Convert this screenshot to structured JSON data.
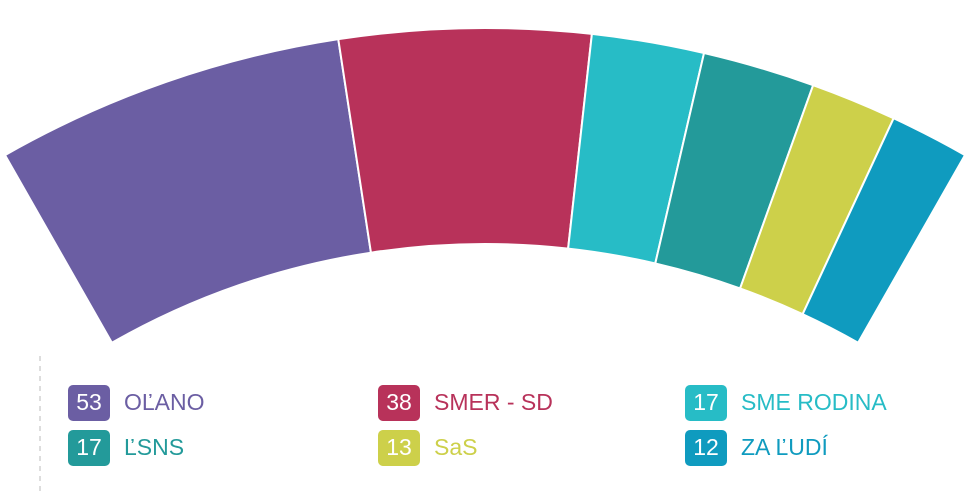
{
  "chart_data": {
    "type": "arc",
    "categories": [
      "OĽANO",
      "SMER - SD",
      "SME RODINA",
      "ĽSNS",
      "SaS",
      "ZA ĽUDÍ"
    ],
    "values": [
      53,
      38,
      17,
      17,
      13,
      12
    ],
    "colors": [
      "#6b5ea3",
      "#b8325a",
      "#27bcc6",
      "#239a9a",
      "#cdd04a",
      "#0f9bbf"
    ]
  }
}
